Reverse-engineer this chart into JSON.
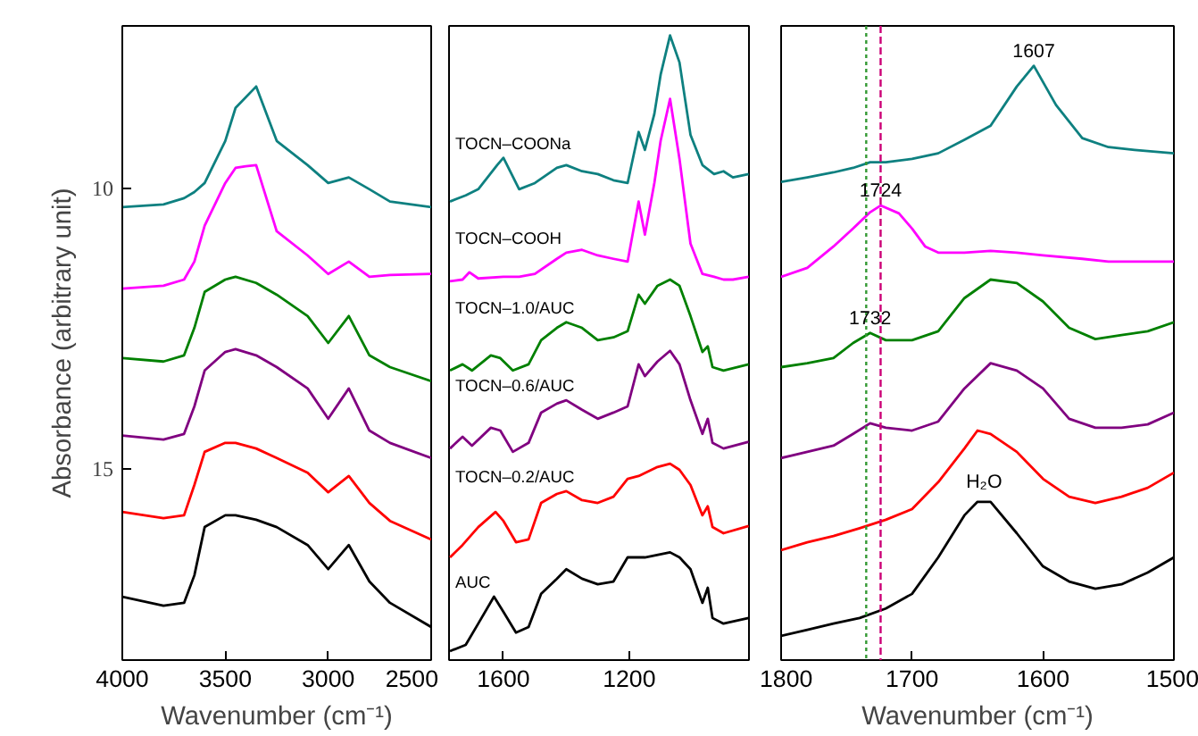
{
  "chart_data": [
    {
      "type": "line",
      "xlabel": "Wavenumber (cm⁻¹)",
      "ylabel": "Absorbance (arbitrary unit)",
      "xlim": [
        4000,
        2500
      ],
      "xticks": [
        4000,
        3500,
        3000,
        2500
      ],
      "ylim": [
        18.4,
        7.1
      ],
      "yticks": [
        10,
        15
      ],
      "series": [
        {
          "color": "#0e8080",
          "x": [
            4000,
            3800,
            3700,
            3650,
            3600,
            3500,
            3450,
            3350,
            3250,
            3100,
            3000,
            2900,
            2800,
            2700,
            2500
          ],
          "values": [
            10.33,
            10.28,
            10.17,
            10.06,
            9.9,
            9.15,
            8.56,
            8.18,
            9.15,
            9.58,
            9.9,
            9.8,
            10.01,
            10.23,
            10.33
          ]
        },
        {
          "color": "#ff00ff",
          "x": [
            4000,
            3800,
            3700,
            3650,
            3600,
            3500,
            3450,
            3400,
            3350,
            3250,
            3100,
            3000,
            2900,
            2800,
            2700,
            2500
          ],
          "values": [
            11.78,
            11.73,
            11.62,
            11.3,
            10.66,
            9.9,
            9.63,
            9.6,
            9.58,
            10.76,
            11.19,
            11.52,
            11.3,
            11.57,
            11.54,
            11.52
          ]
        },
        {
          "color": "#008000",
          "x": [
            4000,
            3800,
            3700,
            3650,
            3600,
            3500,
            3450,
            3350,
            3250,
            3100,
            3000,
            2900,
            2800,
            2700,
            2500
          ],
          "values": [
            13.02,
            13.08,
            12.97,
            12.48,
            11.84,
            11.62,
            11.57,
            11.68,
            11.89,
            12.27,
            12.75,
            12.27,
            12.97,
            13.18,
            13.43
          ]
        },
        {
          "color": "#800080",
          "x": [
            4000,
            3800,
            3700,
            3650,
            3600,
            3500,
            3450,
            3350,
            3250,
            3100,
            3000,
            2900,
            2800,
            2700,
            2500
          ],
          "values": [
            14.4,
            14.47,
            14.37,
            13.88,
            13.24,
            12.91,
            12.86,
            12.97,
            13.18,
            13.56,
            14.1,
            13.56,
            14.31,
            14.53,
            14.8
          ]
        },
        {
          "color": "#ff0000",
          "x": [
            4000,
            3800,
            3700,
            3650,
            3600,
            3500,
            3450,
            3350,
            3250,
            3100,
            3000,
            2900,
            2800,
            2700,
            2500
          ],
          "values": [
            15.76,
            15.87,
            15.82,
            15.28,
            14.69,
            14.53,
            14.53,
            14.63,
            14.8,
            15.06,
            15.41,
            15.12,
            15.6,
            15.92,
            16.25
          ]
        },
        {
          "color": "#000000",
          "x": [
            4000,
            3800,
            3700,
            3650,
            3600,
            3500,
            3450,
            3350,
            3250,
            3100,
            3000,
            2900,
            2800,
            2700,
            2500
          ],
          "values": [
            17.27,
            17.43,
            17.38,
            16.89,
            16.03,
            15.82,
            15.82,
            15.9,
            16.03,
            16.35,
            16.78,
            16.35,
            17.0,
            17.38,
            17.81
          ]
        }
      ]
    },
    {
      "type": "line",
      "xlim": [
        1773,
        819
      ],
      "xticks": [
        1600,
        1200
      ],
      "ylim": [
        18.4,
        7.1
      ],
      "tick_labels": "x",
      "series": [
        {
          "name": "TOCN–COONa",
          "color": "#0e8080",
          "x": [
            1770,
            1720,
            1680,
            1620,
            1600,
            1550,
            1500,
            1430,
            1400,
            1350,
            1300,
            1250,
            1205,
            1170,
            1150,
            1120,
            1100,
            1070,
            1040,
            1005,
            967,
            930,
            900,
            870,
            820
          ],
          "values": [
            10.23,
            10.12,
            10.01,
            9.58,
            9.45,
            10.01,
            9.9,
            9.63,
            9.58,
            9.69,
            9.74,
            9.85,
            9.9,
            8.99,
            9.31,
            8.67,
            7.97,
            7.27,
            7.75,
            9.04,
            9.58,
            9.74,
            9.69,
            9.8,
            9.74
          ]
        },
        {
          "name": "TOCN–COOH",
          "color": "#ff00ff",
          "x": [
            1770,
            1730,
            1708,
            1680,
            1600,
            1550,
            1500,
            1430,
            1400,
            1350,
            1300,
            1250,
            1205,
            1170,
            1150,
            1120,
            1100,
            1070,
            1040,
            1005,
            967,
            930,
            900,
            870,
            820
          ],
          "values": [
            11.65,
            11.62,
            11.49,
            11.6,
            11.57,
            11.57,
            11.52,
            11.25,
            11.14,
            11.09,
            11.19,
            11.25,
            11.3,
            10.23,
            10.82,
            9.9,
            9.15,
            8.4,
            9.47,
            10.98,
            11.52,
            11.57,
            11.62,
            11.62,
            11.57
          ]
        },
        {
          "name": "TOCN–1.0/AUC",
          "color": "#008000",
          "x": [
            1770,
            1730,
            1700,
            1640,
            1610,
            1570,
            1520,
            1480,
            1430,
            1400,
            1350,
            1300,
            1250,
            1205,
            1170,
            1150,
            1110,
            1070,
            1040,
            1005,
            967,
            950,
            935,
            900,
            820
          ],
          "values": [
            13.24,
            13.13,
            13.24,
            12.97,
            13.02,
            13.24,
            13.13,
            12.7,
            12.48,
            12.38,
            12.48,
            12.7,
            12.65,
            12.54,
            11.89,
            12.05,
            11.73,
            11.62,
            11.73,
            12.27,
            12.91,
            12.81,
            13.18,
            13.24,
            13.13
          ]
        },
        {
          "name": "TOCN–0.6/AUC",
          "color": "#800080",
          "x": [
            1770,
            1730,
            1700,
            1640,
            1610,
            1570,
            1520,
            1480,
            1430,
            1400,
            1350,
            1300,
            1250,
            1205,
            1170,
            1150,
            1110,
            1070,
            1040,
            1005,
            967,
            950,
            935,
            900,
            820
          ],
          "values": [
            14.63,
            14.42,
            14.58,
            14.26,
            14.31,
            14.69,
            14.53,
            13.99,
            13.83,
            13.77,
            13.94,
            14.1,
            13.99,
            13.88,
            13.13,
            13.34,
            13.08,
            12.89,
            13.13,
            13.77,
            14.37,
            14.1,
            14.53,
            14.63,
            14.51
          ]
        },
        {
          "name": "TOCN–0.2/AUC",
          "color": "#ff0000",
          "x": [
            1770,
            1730,
            1680,
            1625,
            1600,
            1560,
            1520,
            1480,
            1430,
            1400,
            1350,
            1300,
            1250,
            1205,
            1170,
            1110,
            1070,
            1040,
            1005,
            967,
            950,
            935,
            900,
            820
          ],
          "values": [
            16.57,
            16.35,
            16.03,
            15.76,
            15.92,
            16.3,
            16.25,
            15.6,
            15.44,
            15.39,
            15.55,
            15.6,
            15.49,
            15.17,
            15.12,
            14.96,
            14.9,
            15.01,
            15.28,
            15.82,
            15.66,
            16.03,
            16.14,
            16.01
          ]
        },
        {
          "name": "AUC",
          "color": "#000000",
          "x": [
            1770,
            1720,
            1680,
            1630,
            1600,
            1560,
            1520,
            1480,
            1430,
            1400,
            1350,
            1300,
            1250,
            1205,
            1150,
            1070,
            1040,
            1005,
            967,
            950,
            935,
            900,
            820
          ],
          "values": [
            18.24,
            18.13,
            17.75,
            17.27,
            17.54,
            17.91,
            17.81,
            17.22,
            16.95,
            16.78,
            16.95,
            17.05,
            17.0,
            16.57,
            16.57,
            16.48,
            16.57,
            16.78,
            17.38,
            17.11,
            17.65,
            17.75,
            17.65
          ]
        }
      ]
    },
    {
      "type": "line",
      "xlabel": "Wavenumber (cm⁻¹)",
      "xlim": [
        1800,
        1500
      ],
      "xticks": [
        1800,
        1700,
        1600,
        1500
      ],
      "ylim": [
        18.4,
        7.1
      ],
      "tick_labels": "x",
      "ref_lines": [
        {
          "axis": "x",
          "value": 1735,
          "color": "#339933",
          "line_style": "dotted"
        },
        {
          "axis": "x",
          "value": 1724,
          "color": "#cc0077",
          "line_style": "dashed"
        }
      ],
      "annotations": [
        {
          "text": "1607",
          "x": 1607,
          "y": 7.81
        },
        {
          "text": "1724",
          "x": 1724,
          "y": 10.3
        },
        {
          "text": "1732",
          "x": 1732,
          "y": 12.57
        },
        {
          "text": "H₂O",
          "x": 1645,
          "y": 15.58
        }
      ],
      "series": [
        {
          "color": "#0e8080",
          "x": [
            1800,
            1780,
            1760,
            1745,
            1732,
            1720,
            1700,
            1680,
            1660,
            1640,
            1620,
            1607,
            1590,
            1570,
            1550,
            1530,
            1500
          ],
          "values": [
            9.88,
            9.8,
            9.71,
            9.63,
            9.53,
            9.53,
            9.47,
            9.37,
            9.13,
            8.88,
            8.18,
            7.81,
            8.51,
            9.1,
            9.26,
            9.31,
            9.37
          ]
        },
        {
          "color": "#ff00ff",
          "x": [
            1800,
            1780,
            1760,
            1745,
            1732,
            1724,
            1710,
            1700,
            1690,
            1680,
            1660,
            1640,
            1620,
            1600,
            1570,
            1550,
            1500
          ],
          "values": [
            11.57,
            11.41,
            11.03,
            10.71,
            10.42,
            10.3,
            10.44,
            10.71,
            11.03,
            11.14,
            11.14,
            11.11,
            11.14,
            11.19,
            11.25,
            11.3,
            11.3
          ]
        },
        {
          "color": "#008000",
          "x": [
            1800,
            1780,
            1760,
            1745,
            1732,
            1720,
            1700,
            1680,
            1660,
            1640,
            1620,
            1600,
            1580,
            1560,
            1540,
            1520,
            1500
          ],
          "values": [
            13.18,
            13.11,
            13.02,
            12.75,
            12.57,
            12.7,
            12.7,
            12.54,
            11.95,
            11.62,
            11.68,
            12.01,
            12.48,
            12.68,
            12.61,
            12.54,
            12.38
          ]
        },
        {
          "color": "#800080",
          "x": [
            1800,
            1780,
            1760,
            1745,
            1732,
            1720,
            1700,
            1680,
            1660,
            1640,
            1620,
            1600,
            1580,
            1560,
            1540,
            1520,
            1500
          ],
          "values": [
            14.8,
            14.69,
            14.58,
            14.37,
            14.18,
            14.26,
            14.31,
            14.15,
            13.56,
            13.11,
            13.24,
            13.56,
            14.1,
            14.26,
            14.26,
            14.2,
            13.99
          ]
        },
        {
          "color": "#ff0000",
          "x": [
            1800,
            1780,
            1760,
            1740,
            1720,
            1700,
            1680,
            1660,
            1650,
            1640,
            1620,
            1600,
            1580,
            1560,
            1540,
            1520,
            1500
          ],
          "values": [
            16.44,
            16.3,
            16.19,
            16.05,
            15.9,
            15.71,
            15.23,
            14.63,
            14.31,
            14.37,
            14.69,
            15.17,
            15.49,
            15.6,
            15.49,
            15.33,
            15.06
          ]
        },
        {
          "color": "#000000",
          "x": [
            1800,
            1780,
            1760,
            1740,
            1720,
            1700,
            1680,
            1660,
            1650,
            1640,
            1620,
            1600,
            1580,
            1560,
            1540,
            1520,
            1500
          ],
          "values": [
            17.97,
            17.86,
            17.75,
            17.65,
            17.48,
            17.22,
            16.57,
            15.82,
            15.58,
            15.58,
            16.14,
            16.73,
            17.0,
            17.13,
            17.05,
            16.84,
            16.57
          ]
        }
      ]
    }
  ]
}
